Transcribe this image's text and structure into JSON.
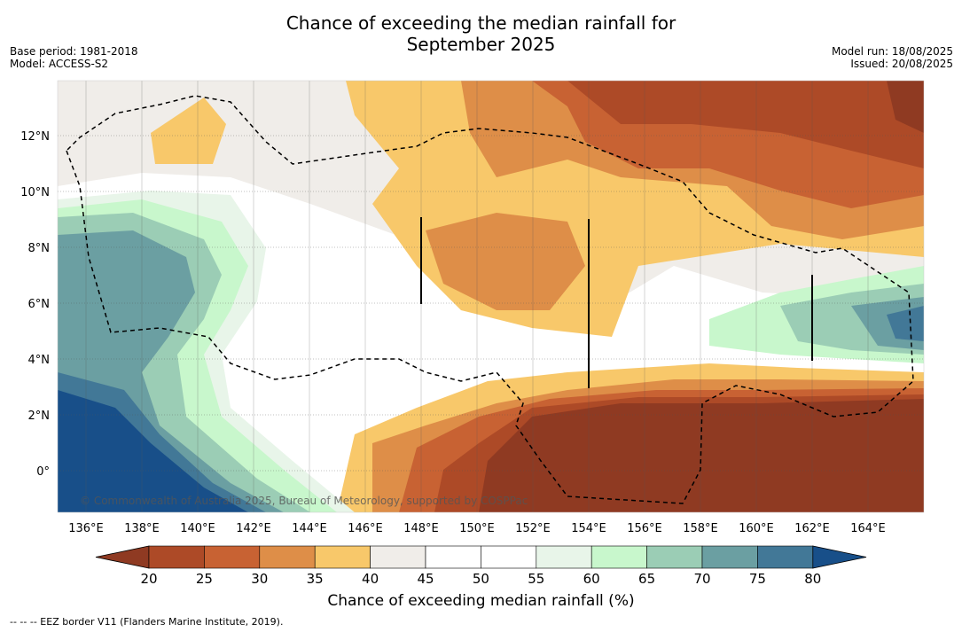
{
  "header": {
    "title_line1": "Chance of exceeding the median rainfall for",
    "title_line2": "September 2025",
    "base_period": "Base period: 1981-2018",
    "model": "Model: ACCESS-S2",
    "model_run": "Model run: 18/08/2025",
    "issued": "Issued: 20/08/2025"
  },
  "map": {
    "lon_ticks": [
      "136°E",
      "138°E",
      "140°E",
      "142°E",
      "144°E",
      "146°E",
      "148°E",
      "150°E",
      "152°E",
      "154°E",
      "156°E",
      "158°E",
      "160°E",
      "162°E",
      "164°E"
    ],
    "lat_ticks": [
      "12°N",
      "10°N",
      "8°N",
      "6°N",
      "4°N",
      "2°N",
      "0°"
    ],
    "copyright": "© Commonwealth of Australia 2025, Bureau of Meteorology, supported by COSPPac"
  },
  "colorbar": {
    "ticks": [
      "20",
      "25",
      "30",
      "35",
      "40",
      "45",
      "50",
      "55",
      "60",
      "65",
      "70",
      "75",
      "80"
    ],
    "under_color": "#8f3a22",
    "over_color": "#184f89",
    "colors": [
      "#ad4a27",
      "#c86233",
      "#de8e48",
      "#f8c86a",
      "#f0ede9",
      "#ffffff",
      "#ffffff",
      "#e8f5e9",
      "#c8f7cc",
      "#9bcdb5",
      "#6b9fa2",
      "#427897"
    ],
    "label": "Chance of exceeding median rainfall (%)"
  },
  "footer": {
    "eez_note": "--  --  -- EEZ border V11 (Flanders Marine Institute, 2019)."
  }
}
